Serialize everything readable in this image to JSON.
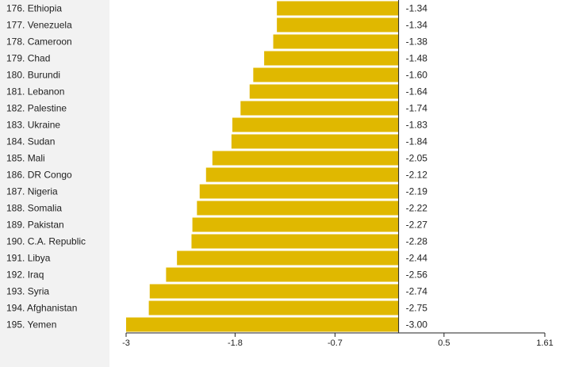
{
  "chart_data": {
    "type": "bar",
    "orientation": "horizontal",
    "title": "",
    "xlabel": "",
    "ylabel": "",
    "bar_color": "#e0b800",
    "categories": [
      "176. Ethiopia",
      "177. Venezuela",
      "178. Cameroon",
      "179. Chad",
      "180. Burundi",
      "181. Lebanon",
      "182. Palestine",
      "183. Ukraine",
      "184. Sudan",
      "185. Mali",
      "186. DR Congo",
      "187. Nigeria",
      "188. Somalia",
      "189. Pakistan",
      "190. C.A. Republic",
      "191. Libya",
      "192. Iraq",
      "193. Syria",
      "194. Afghanistan",
      "195. Yemen"
    ],
    "values": [
      -1.34,
      -1.34,
      -1.38,
      -1.48,
      -1.6,
      -1.64,
      -1.74,
      -1.83,
      -1.84,
      -2.05,
      -2.12,
      -2.19,
      -2.22,
      -2.27,
      -2.28,
      -2.44,
      -2.56,
      -2.74,
      -2.75,
      -3.0
    ],
    "value_labels": [
      "-1.34",
      "-1.34",
      "-1.38",
      "-1.48",
      "-1.60",
      "-1.64",
      "-1.74",
      "-1.83",
      "-1.84",
      "-2.05",
      "-2.12",
      "-2.19",
      "-2.22",
      "-2.27",
      "-2.28",
      "-2.44",
      "-2.56",
      "-2.74",
      "-2.75",
      "-3.00"
    ],
    "xlim": [
      -3,
      1.61
    ],
    "x_ticks": [
      -3,
      -1.8,
      -0.7,
      0.5,
      1.61
    ],
    "x_tick_labels": [
      "-3",
      "-1.8",
      "-0.7",
      "0.5",
      "1.61"
    ],
    "baseline": 0,
    "grid": false,
    "legend": "none"
  }
}
